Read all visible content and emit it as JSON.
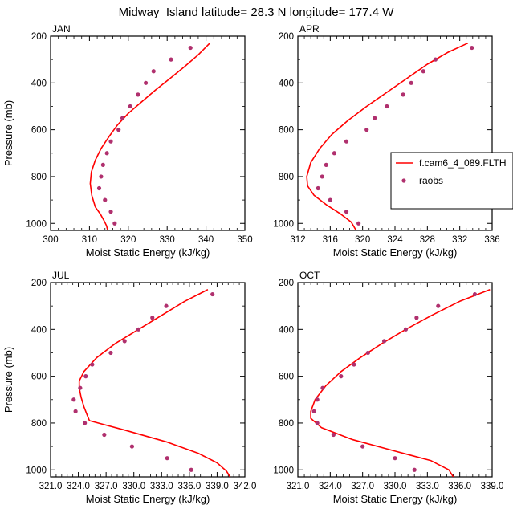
{
  "figure_title": "Midway_Island  latitude= 28.3 N longitude= 177.4 W",
  "colors": {
    "model_line": "#ff0000",
    "obs_marker": "#b0306e",
    "axis": "#000000"
  },
  "legend": {
    "position": "right of APR panel",
    "entries": [
      {
        "label": "f.cam6_4_089.FLTH",
        "symbol": "line",
        "color": "#ff0000"
      },
      {
        "label": "raobs",
        "symbol": "dot",
        "color": "#b0306e"
      }
    ]
  },
  "chart_data": [
    {
      "type": "line",
      "panel": "JAN",
      "title": "JAN",
      "xlabel": "Moist Static Energy (kJ/kg)",
      "ylabel": "Pressure (mb)",
      "xlim": [
        300,
        350
      ],
      "ylim": [
        1030,
        200
      ],
      "y_reversed": true,
      "xticks": [
        "300",
        "310",
        "320",
        "330",
        "340",
        "350"
      ],
      "yticks": [
        "200",
        "400",
        "600",
        "800",
        "1000"
      ],
      "series": [
        {
          "kind": "line",
          "x": [
            341.0,
            338.0,
            334.5,
            330.8,
            327.0,
            323.5,
            320.0,
            317.2,
            315.0,
            313.0,
            311.5,
            310.5,
            310.2,
            310.6,
            311.5,
            312.8,
            313.8,
            314.4,
            314.7
          ],
          "y": [
            230,
            280,
            330,
            380,
            430,
            480,
            530,
            580,
            630,
            680,
            730,
            780,
            830,
            880,
            930,
            960,
            990,
            1010,
            1030
          ]
        },
        {
          "kind": "scatter",
          "x": [
            336.0,
            331.0,
            326.5,
            324.5,
            322.5,
            320.5,
            318.5,
            317.5,
            315.5,
            314.5,
            313.5,
            313.0,
            312.5,
            314.0,
            315.5,
            316.5
          ],
          "y": [
            250,
            300,
            350,
            400,
            450,
            500,
            550,
            600,
            650,
            700,
            750,
            800,
            850,
            900,
            950,
            1000
          ]
        }
      ]
    },
    {
      "type": "line",
      "panel": "APR",
      "title": "APR",
      "xlabel": "Moist Static Energy (kJ/kg)",
      "ylabel": "",
      "xlim": [
        312,
        336
      ],
      "ylim": [
        1030,
        200
      ],
      "y_reversed": true,
      "xticks": [
        "312",
        "316",
        "320",
        "324",
        "328",
        "332",
        "336"
      ],
      "yticks": [
        "200",
        "400",
        "600",
        "800",
        "1000"
      ],
      "series": [
        {
          "kind": "line",
          "x": [
            333.0,
            330.5,
            328.0,
            325.5,
            323.0,
            320.5,
            318.2,
            316.2,
            314.7,
            313.6,
            313.1,
            313.2,
            314.0,
            315.5,
            317.3,
            318.6,
            319.2
          ],
          "y": [
            230,
            270,
            320,
            380,
            440,
            500,
            560,
            620,
            680,
            740,
            800,
            840,
            880,
            920,
            960,
            995,
            1030
          ]
        },
        {
          "kind": "scatter",
          "x": [
            333.5,
            329.0,
            327.5,
            326.0,
            325.0,
            323.0,
            321.5,
            320.5,
            318.0,
            316.5,
            315.5,
            315.0,
            314.5,
            316.0,
            318.0,
            319.5
          ],
          "y": [
            250,
            300,
            350,
            400,
            450,
            500,
            550,
            600,
            650,
            700,
            750,
            800,
            850,
            900,
            950,
            1000
          ]
        }
      ]
    },
    {
      "type": "line",
      "panel": "JUL",
      "title": "JUL",
      "xlabel": "Moist Static Energy (kJ/kg)",
      "ylabel": "Pressure (mb)",
      "xlim": [
        321,
        342
      ],
      "ylim": [
        1030,
        200
      ],
      "y_reversed": true,
      "xticks": [
        "321.0",
        "324.0",
        "327.0",
        "330.0",
        "333.0",
        "336.0",
        "339.0",
        "342.0"
      ],
      "yticks": [
        "200",
        "400",
        "600",
        "800",
        "1000"
      ],
      "series": [
        {
          "kind": "line",
          "x": [
            338.0,
            335.5,
            333.0,
            330.5,
            328.0,
            326.0,
            324.6,
            324.1,
            324.1,
            324.3,
            324.6,
            324.9,
            325.2,
            329.0,
            333.5,
            337.0,
            339.0,
            340.0,
            340.4
          ],
          "y": [
            230,
            280,
            340,
            400,
            460,
            520,
            580,
            620,
            650,
            690,
            730,
            760,
            790,
            830,
            880,
            930,
            970,
            1005,
            1030
          ]
        },
        {
          "kind": "scatter",
          "x": [
            338.5,
            333.5,
            332.0,
            330.5,
            329.0,
            327.5,
            325.5,
            324.8,
            324.2,
            323.5,
            323.7,
            324.7,
            326.8,
            329.8,
            333.6,
            336.2
          ],
          "y": [
            250,
            300,
            350,
            400,
            450,
            500,
            550,
            600,
            650,
            700,
            750,
            800,
            850,
            900,
            950,
            1000
          ]
        }
      ]
    },
    {
      "type": "line",
      "panel": "OCT",
      "title": "OCT",
      "xlabel": "Moist Static Energy (kJ/kg)",
      "ylabel": "",
      "xlim": [
        321,
        339
      ],
      "ylim": [
        1030,
        200
      ],
      "y_reversed": true,
      "xticks": [
        "321.0",
        "324.0",
        "327.0",
        "330.0",
        "333.0",
        "336.0",
        "339.0"
      ],
      "yticks": [
        "200",
        "400",
        "600",
        "800",
        "1000"
      ],
      "series": [
        {
          "kind": "line",
          "x": [
            338.8,
            336.0,
            333.4,
            331.0,
            328.8,
            326.8,
            325.0,
            323.6,
            322.6,
            322.2,
            322.2,
            323.2,
            326.0,
            330.0,
            333.3,
            335.0,
            335.4
          ],
          "y": [
            230,
            280,
            340,
            400,
            460,
            520,
            580,
            640,
            700,
            750,
            780,
            820,
            870,
            920,
            960,
            1000,
            1030
          ]
        },
        {
          "kind": "scatter",
          "x": [
            337.4,
            334.0,
            332.0,
            331.0,
            329.0,
            327.5,
            326.2,
            325.0,
            323.3,
            322.8,
            322.5,
            322.8,
            324.3,
            327.0,
            330.0,
            331.8
          ],
          "y": [
            250,
            300,
            350,
            400,
            450,
            500,
            550,
            600,
            650,
            700,
            750,
            800,
            850,
            900,
            950,
            1000
          ]
        }
      ]
    }
  ]
}
